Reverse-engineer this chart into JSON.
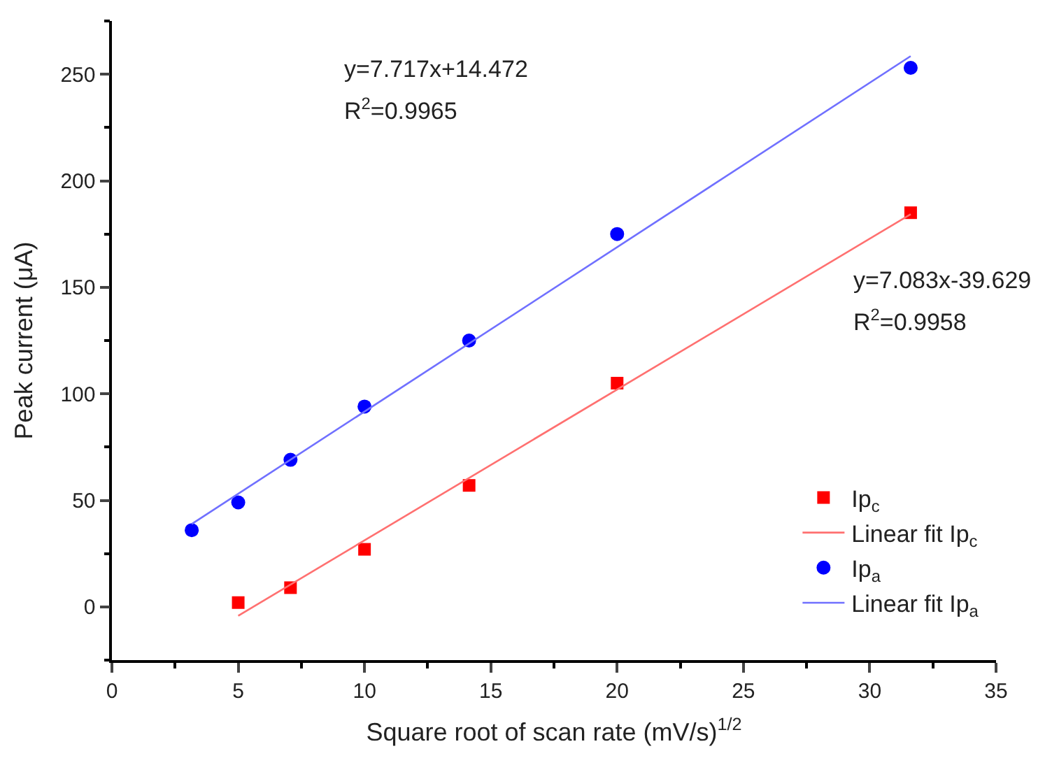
{
  "chart_data": {
    "type": "scatter",
    "xlabel": "Square root of scan rate (mV/s)$^{1/2}$",
    "ylabel": "Peak current (μA)",
    "xlim": [
      0,
      35
    ],
    "xticks": [
      0,
      5,
      10,
      15,
      20,
      25,
      30,
      35
    ],
    "ylim": [
      -25,
      275
    ],
    "yticks": [
      0,
      50,
      100,
      150,
      200,
      250
    ],
    "legend": "bottom right",
    "series": [
      {
        "name": "Ip$_{c}$",
        "marker": "square",
        "color": "#ff0000",
        "x": [
          5,
          7.07,
          10,
          14.14,
          20,
          31.62
        ],
        "values": [
          2,
          9,
          27,
          57,
          105,
          185
        ]
      },
      {
        "name": "Linear fit Ip$_{c}$",
        "type": "line",
        "marker": "none",
        "line_style": "solid",
        "color": "#ff7070",
        "x": [
          5,
          31.62
        ],
        "values": [
          -4.2,
          184.3
        ]
      },
      {
        "name": "Ip$_{a}$",
        "marker": "circle",
        "color": "#0000ff",
        "x": [
          3.16,
          5,
          7.07,
          10,
          14.14,
          20,
          31.62
        ],
        "values": [
          36,
          49,
          69,
          94,
          125,
          175,
          253
        ]
      },
      {
        "name": "Linear fit Ip$_{a}$",
        "type": "line",
        "marker": "none",
        "line_style": "solid",
        "color": "#7070ff",
        "x": [
          3.16,
          31.62
        ],
        "values": [
          38.9,
          258.5
        ]
      }
    ],
    "annotations": [
      "y=7.717x+14.472",
      "R$^{2}$=0.9965",
      "y=7.083x-39.629",
      "R$^{2}$=0.9958"
    ]
  }
}
